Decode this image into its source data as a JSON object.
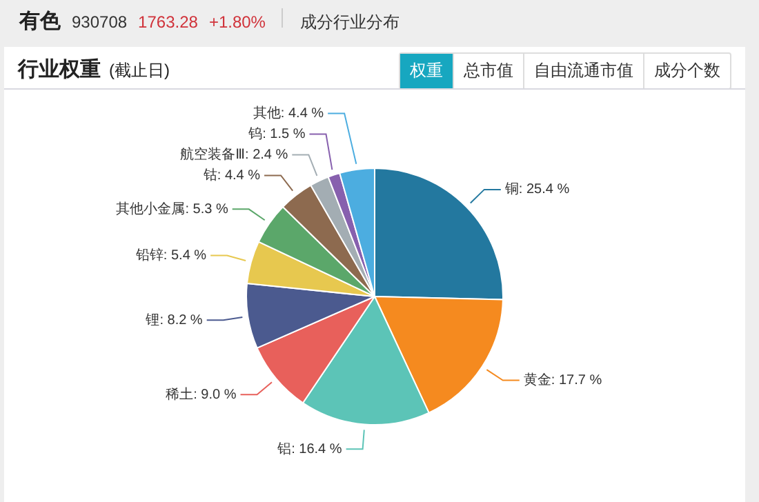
{
  "chart_data": {
    "type": "pie",
    "title": "行业权重",
    "subtitle": "(截止日)",
    "annotations": [
      "有色",
      "930708",
      "1763.28",
      "+1.80%",
      "成分行业分布",
      "权重",
      "总市值",
      "自由流通市值",
      "成分个数"
    ],
    "categories": [
      "铜",
      "黄金",
      "铝",
      "稀土",
      "锂",
      "铅锌",
      "其他小金属",
      "钴",
      "航空装备Ⅲ",
      "钨",
      "其他"
    ],
    "values": [
      25.4,
      17.7,
      16.4,
      9.0,
      8.2,
      5.4,
      5.3,
      4.4,
      2.4,
      1.5,
      4.4
    ],
    "value_labels": [
      "25.4 %",
      "17.7 %",
      "16.4 %",
      "9.0 %",
      "8.2 %",
      "5.4 %",
      "5.3 %",
      "4.4 %",
      "2.4 %",
      "1.5 %",
      "4.4 %"
    ],
    "colors": [
      "#23789f",
      "#f58a1f",
      "#5cc4b7",
      "#e8605b",
      "#4b5a8f",
      "#e7c84f",
      "#5ba76a",
      "#8d6a4f",
      "#a3adb3",
      "#8760ae",
      "#4cade0"
    ],
    "legend": false
  }
}
